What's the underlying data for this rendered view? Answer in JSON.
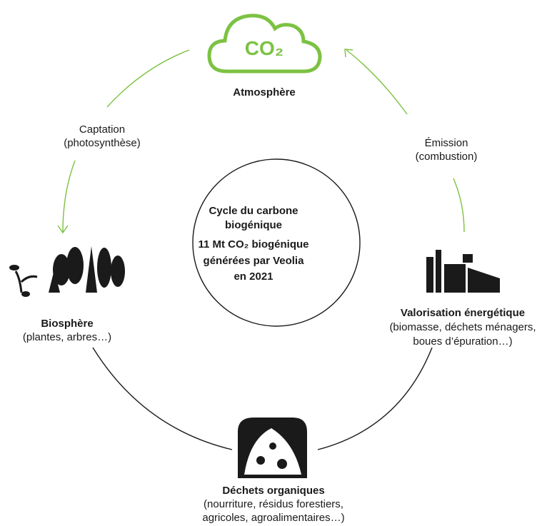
{
  "center": {
    "lines": [
      "Cycle du carbone",
      "biogénique",
      "11 Mt CO₂ biogénique",
      "générées par Veolia",
      "en 2021"
    ]
  },
  "nodes": [
    {
      "icon": "CO₂",
      "label": "Atmosphère",
      "description": []
    },
    {
      "label": "Valorisation énergétique",
      "description": [
        "(biomasse, déchets ménagers,",
        "boues d’épuration…)"
      ]
    },
    {
      "label": "Déchets organiques",
      "description": [
        "(nourriture, résidus forestiers,",
        "agricoles, agroalimentaires…)"
      ]
    },
    {
      "label": "Biosphère",
      "description": [
        "(plantes, arbres…)"
      ]
    }
  ],
  "edges": [
    {
      "label": [
        "Captation",
        "(photosynthèse)"
      ]
    },
    {
      "label": [
        "Émission",
        "(combustion)"
      ]
    }
  ]
}
